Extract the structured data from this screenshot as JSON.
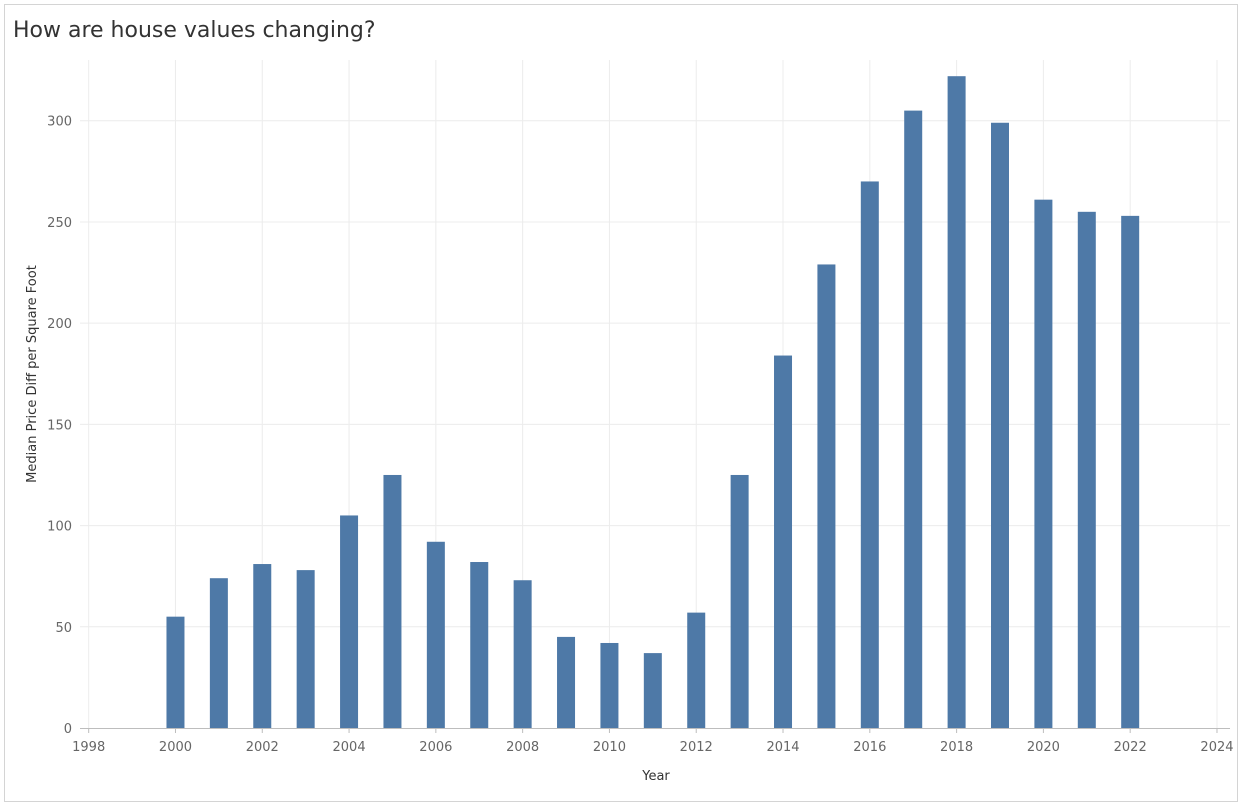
{
  "chart_data": {
    "type": "bar",
    "title": "How are house values changing?",
    "xlabel": "Year",
    "ylabel": "Median Price Diff per Square Foot",
    "x": [
      2000,
      2001,
      2002,
      2003,
      2004,
      2005,
      2006,
      2007,
      2008,
      2009,
      2010,
      2011,
      2012,
      2013,
      2014,
      2015,
      2016,
      2017,
      2018,
      2019,
      2020,
      2021,
      2022
    ],
    "values": [
      55,
      74,
      81,
      78,
      105,
      125,
      92,
      82,
      73,
      45,
      42,
      37,
      57,
      125,
      184,
      229,
      270,
      305,
      322,
      299,
      261,
      255,
      253
    ],
    "xlim": [
      1997.8,
      2024.3
    ],
    "ylim": [
      0,
      330
    ],
    "xticks": [
      1998,
      2000,
      2002,
      2004,
      2006,
      2008,
      2010,
      2012,
      2014,
      2016,
      2018,
      2020,
      2022,
      2024
    ],
    "xtick_labels": [
      "1998",
      "2000",
      "2002",
      "2004",
      "2006",
      "2008",
      "2010",
      "2012",
      "2014",
      "2016",
      "2018",
      "2020",
      "2022",
      "2024"
    ],
    "yticks": [
      0,
      50,
      100,
      150,
      200,
      250,
      300
    ],
    "ytick_labels": [
      "0",
      "50",
      "100",
      "150",
      "200",
      "250",
      "300"
    ],
    "grid": true,
    "colors": {
      "bar": "#4e79a7",
      "grid": "#ececec",
      "axis": "#bdbdbd"
    }
  }
}
